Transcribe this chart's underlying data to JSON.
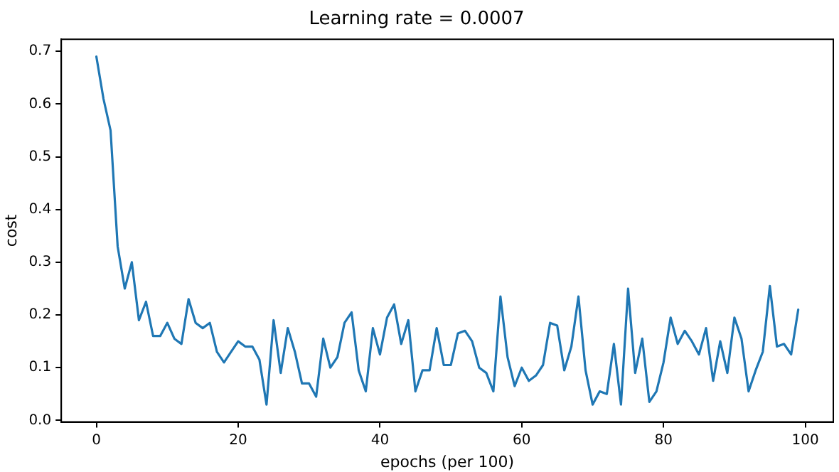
{
  "chart_data": {
    "type": "line",
    "title": "Learning rate = 0.0007",
    "xlabel": "epochs (per 100)",
    "ylabel": "cost",
    "x": [
      0,
      1,
      2,
      3,
      4,
      5,
      6,
      7,
      8,
      9,
      10,
      11,
      12,
      13,
      14,
      15,
      16,
      17,
      18,
      19,
      20,
      21,
      22,
      23,
      24,
      25,
      26,
      27,
      28,
      29,
      30,
      31,
      32,
      33,
      34,
      35,
      36,
      37,
      38,
      39,
      40,
      41,
      42,
      43,
      44,
      45,
      46,
      47,
      48,
      49,
      50,
      51,
      52,
      53,
      54,
      55,
      56,
      57,
      58,
      59,
      60,
      61,
      62,
      63,
      64,
      65,
      66,
      67,
      68,
      69,
      70,
      71,
      72,
      73,
      74,
      75,
      76,
      77,
      78,
      79,
      80,
      81,
      82,
      83,
      84,
      85,
      86,
      87,
      88,
      89,
      90,
      91,
      92,
      93,
      94,
      95,
      96,
      97,
      98,
      99
    ],
    "series": [
      {
        "color": "#1f77b4",
        "values": [
          0.69,
          0.61,
          0.55,
          0.33,
          0.25,
          0.3,
          0.19,
          0.225,
          0.16,
          0.16,
          0.185,
          0.155,
          0.145,
          0.23,
          0.185,
          0.175,
          0.185,
          0.13,
          0.11,
          0.13,
          0.15,
          0.14,
          0.14,
          0.115,
          0.03,
          0.19,
          0.09,
          0.175,
          0.13,
          0.07,
          0.07,
          0.045,
          0.155,
          0.1,
          0.12,
          0.185,
          0.205,
          0.095,
          0.055,
          0.175,
          0.125,
          0.195,
          0.22,
          0.145,
          0.19,
          0.055,
          0.095,
          0.095,
          0.175,
          0.105,
          0.105,
          0.165,
          0.17,
          0.15,
          0.1,
          0.09,
          0.055,
          0.235,
          0.12,
          0.065,
          0.1,
          0.075,
          0.085,
          0.105,
          0.185,
          0.18,
          0.095,
          0.14,
          0.235,
          0.095,
          0.03,
          0.055,
          0.05,
          0.145,
          0.03,
          0.25,
          0.09,
          0.155,
          0.035,
          0.055,
          0.11,
          0.195,
          0.145,
          0.17,
          0.15,
          0.125,
          0.175,
          0.075,
          0.15,
          0.09,
          0.195,
          0.155,
          0.055,
          0.095,
          0.13,
          0.255,
          0.14,
          0.145,
          0.125,
          0.21
        ]
      }
    ],
    "xlim": [
      -4.95,
      103.95
    ],
    "xticks": [
      0,
      20,
      40,
      60,
      80,
      100
    ],
    "ylim": [
      -0.003,
      0.723
    ],
    "yticks": [
      {
        "value": 0,
        "label": "0.0"
      },
      {
        "value": 0.1,
        "label": "0.1"
      },
      {
        "value": 0.2,
        "label": "0.2"
      },
      {
        "value": 0.3,
        "label": "0.3"
      },
      {
        "value": 0.4,
        "label": "0.4"
      },
      {
        "value": 0.5,
        "label": "0.5"
      },
      {
        "value": 0.6,
        "label": "0.6"
      },
      {
        "value": 0.7,
        "label": "0.7"
      }
    ],
    "grid": false,
    "legend": false,
    "marker": "none",
    "line_style": "solid"
  }
}
